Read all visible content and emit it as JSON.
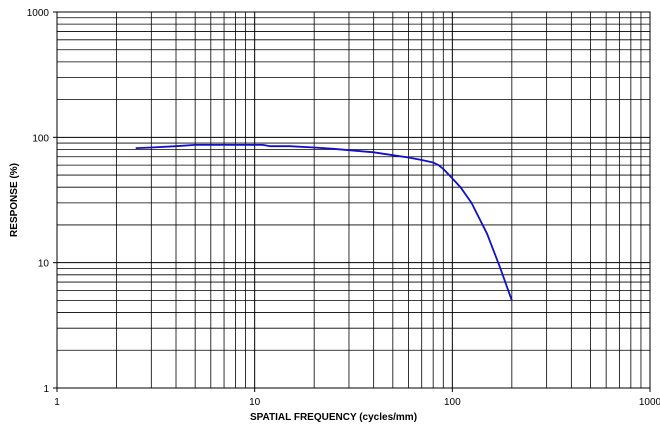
{
  "chart_data": {
    "type": "line",
    "x_scale": "log",
    "y_scale": "log",
    "xlim": [
      1,
      1000
    ],
    "ylim": [
      1,
      1000
    ],
    "xlabel": "SPATIAL FREQUENCY (cycles/mm)",
    "ylabel": "RESPONSE (%)",
    "x_tick_labels": [
      "1",
      "10",
      "100",
      "1000"
    ],
    "y_tick_labels": [
      "1",
      "10",
      "100",
      "1000"
    ],
    "grid": true,
    "line_color": "#1010c8",
    "series": [
      {
        "x": [
          2.5,
          3,
          4,
          5,
          6,
          7,
          8,
          9,
          10,
          11,
          12,
          15,
          20,
          25,
          30,
          40,
          50,
          60,
          70,
          80,
          85,
          90,
          100,
          110,
          125,
          150,
          175,
          200
        ],
        "y": [
          82,
          83,
          85,
          87,
          87,
          87,
          87,
          87,
          87,
          87,
          85,
          85,
          83,
          81,
          79,
          76,
          72,
          69,
          66,
          63,
          60,
          56,
          47,
          40,
          30,
          17,
          9,
          5
        ]
      }
    ]
  }
}
